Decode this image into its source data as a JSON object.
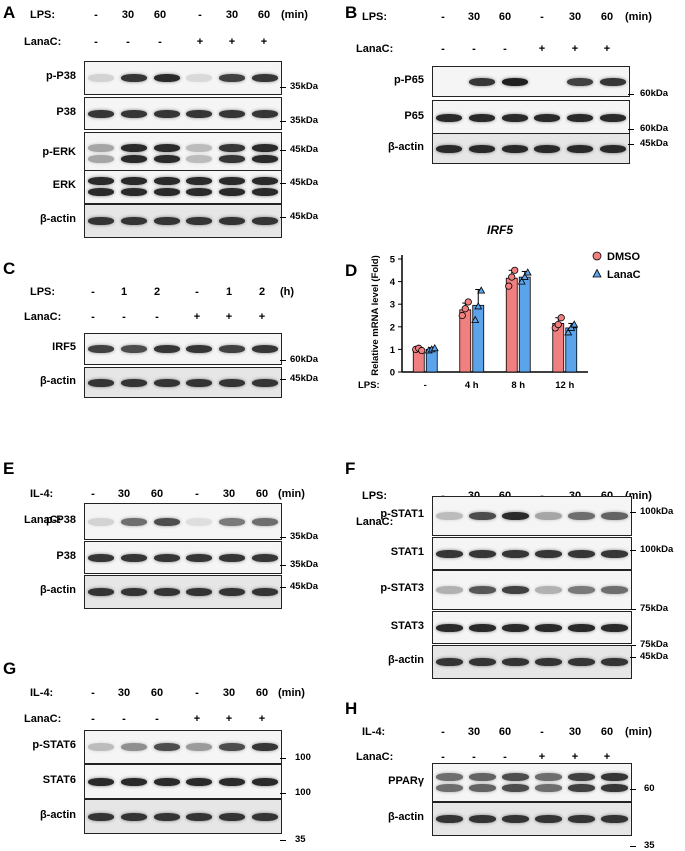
{
  "panels": {
    "A": {
      "letter": "A",
      "treat": "LPS:",
      "treat_vals": [
        "-",
        "30",
        "60",
        "-",
        "30",
        "60"
      ],
      "unit": "(min)",
      "inh": "LanaC:",
      "inh_vals": [
        "-",
        "-",
        "-",
        "+",
        "+",
        "+"
      ],
      "rows": [
        "p-P38",
        "P38",
        "p-ERK",
        "ERK",
        "β-actin"
      ],
      "markers": [
        "35kDa",
        "35kDa",
        "45kDa",
        "45kDa",
        "45kDa"
      ]
    },
    "B": {
      "letter": "B",
      "treat": "LPS:",
      "treat_vals": [
        "-",
        "30",
        "60",
        "-",
        "30",
        "60"
      ],
      "unit": "(min)",
      "inh": "LanaC:",
      "inh_vals": [
        "-",
        "-",
        "-",
        "+",
        "+",
        "+"
      ],
      "rows": [
        "p-P65",
        "P65",
        "β-actin"
      ],
      "markers": [
        "60kDa",
        "60kDa",
        "45kDa"
      ]
    },
    "C": {
      "letter": "C",
      "treat": "LPS:",
      "treat_vals": [
        "-",
        "1",
        "2",
        "-",
        "1",
        "2"
      ],
      "unit": "(h)",
      "inh": "LanaC:",
      "inh_vals": [
        "-",
        "-",
        "-",
        "+",
        "+",
        "+"
      ],
      "rows": [
        "IRF5",
        "β-actin"
      ],
      "markers": [
        "60kDa",
        "45kDa"
      ]
    },
    "E": {
      "letter": "E",
      "treat": "IL-4:",
      "treat_vals": [
        "-",
        "30",
        "60",
        "-",
        "30",
        "60"
      ],
      "unit": "(min)",
      "inh": "LanaC:",
      "inh_vals": [
        "-",
        "-",
        "-",
        "+",
        "+",
        "+"
      ],
      "rows": [
        "p-P38",
        "P38",
        "β-actin"
      ],
      "markers": [
        "35kDa",
        "35kDa",
        "45kDa"
      ]
    },
    "F": {
      "letter": "F",
      "treat": "LPS:",
      "treat_vals": [
        "-",
        "30",
        "60",
        "-",
        "30",
        "60"
      ],
      "unit": "(min)",
      "inh": "LanaC:",
      "inh_vals": [
        "-",
        "-",
        "-",
        "+",
        "+",
        "+"
      ],
      "rows": [
        "p-STAT1",
        "STAT1",
        "p-STAT3",
        "STAT3",
        "β-actin"
      ],
      "markers": [
        "100kDa",
        "100kDa",
        "75kDa",
        "75kDa",
        "45kDa"
      ]
    },
    "G": {
      "letter": "G",
      "treat": "IL-4:",
      "treat_vals": [
        "-",
        "30",
        "60",
        "-",
        "30",
        "60"
      ],
      "unit": "(min)",
      "inh": "LanaC:",
      "inh_vals": [
        "-",
        "-",
        "-",
        "+",
        "+",
        "+"
      ],
      "rows": [
        "p-STAT6",
        "STAT6",
        "β-actin"
      ],
      "markers": [
        "100",
        "100",
        "35"
      ]
    },
    "H": {
      "letter": "H",
      "treat": "IL-4:",
      "treat_vals": [
        "-",
        "30",
        "60",
        "-",
        "30",
        "60"
      ],
      "unit": "(min)",
      "inh": "LanaC:",
      "inh_vals": [
        "-",
        "-",
        "-",
        "+",
        "+",
        "+"
      ],
      "rows": [
        "PPARγ",
        "β-actin"
      ],
      "markers": [
        "60",
        "35"
      ]
    }
  },
  "band_levels": {
    "A": [
      [
        0.15,
        0.85,
        0.9,
        0.12,
        0.8,
        0.85
      ],
      [
        0.85,
        0.85,
        0.85,
        0.85,
        0.85,
        0.85
      ],
      [
        0.35,
        0.9,
        0.9,
        0.25,
        0.85,
        0.9
      ],
      [
        0.9,
        0.9,
        0.9,
        0.9,
        0.9,
        0.9
      ],
      [
        0.85,
        0.85,
        0.85,
        0.85,
        0.85,
        0.85
      ]
    ],
    "B": [
      [
        0.0,
        0.85,
        0.95,
        0.0,
        0.8,
        0.85
      ],
      [
        0.9,
        0.9,
        0.9,
        0.9,
        0.9,
        0.9
      ],
      [
        0.9,
        0.9,
        0.9,
        0.9,
        0.9,
        0.9
      ]
    ],
    "C": [
      [
        0.8,
        0.75,
        0.85,
        0.85,
        0.8,
        0.85
      ],
      [
        0.85,
        0.85,
        0.85,
        0.85,
        0.85,
        0.85
      ]
    ],
    "E": [
      [
        0.15,
        0.6,
        0.75,
        0.1,
        0.55,
        0.6
      ],
      [
        0.85,
        0.85,
        0.85,
        0.85,
        0.85,
        0.85
      ],
      [
        0.85,
        0.85,
        0.85,
        0.85,
        0.85,
        0.85
      ]
    ],
    "F": [
      [
        0.25,
        0.75,
        0.9,
        0.35,
        0.6,
        0.65
      ],
      [
        0.85,
        0.85,
        0.85,
        0.85,
        0.85,
        0.85
      ],
      [
        0.3,
        0.7,
        0.8,
        0.3,
        0.55,
        0.6
      ],
      [
        0.9,
        0.9,
        0.9,
        0.9,
        0.9,
        0.9
      ],
      [
        0.85,
        0.85,
        0.85,
        0.85,
        0.85,
        0.85
      ]
    ],
    "G": [
      [
        0.25,
        0.45,
        0.75,
        0.4,
        0.75,
        0.85
      ],
      [
        0.9,
        0.9,
        0.9,
        0.9,
        0.9,
        0.9
      ],
      [
        0.85,
        0.85,
        0.85,
        0.85,
        0.85,
        0.85
      ]
    ],
    "H": [
      [
        0.6,
        0.65,
        0.75,
        0.6,
        0.8,
        0.85
      ],
      [
        0.85,
        0.85,
        0.85,
        0.85,
        0.85,
        0.85
      ]
    ]
  },
  "chart_data": {
    "type": "bar",
    "letter": "D",
    "title": "IRF5",
    "ylabel": "Relative mRNA level (Fold)",
    "xlabel": "LPS:",
    "categories": [
      "-",
      "4 h",
      "8 h",
      "12 h"
    ],
    "ylim": [
      0,
      5
    ],
    "yticks": [
      0,
      1,
      2,
      3,
      4,
      5
    ],
    "legend_position": "top-right",
    "series": [
      {
        "name": "DMSO",
        "color": "#f08080",
        "values": [
          1.0,
          2.75,
          4.15,
          2.15
        ],
        "errors": [
          0.05,
          0.3,
          0.35,
          0.25
        ],
        "points": [
          [
            1.0,
            1.05,
            0.95
          ],
          [
            2.5,
            2.8,
            3.1
          ],
          [
            3.8,
            4.2,
            4.5
          ],
          [
            1.95,
            2.1,
            2.4
          ]
        ]
      },
      {
        "name": "LanaC",
        "color": "#5ba3ea",
        "values": [
          1.0,
          2.95,
          4.2,
          1.95
        ],
        "errors": [
          0.08,
          0.7,
          0.25,
          0.2
        ],
        "points": [
          [
            0.95,
            1.0,
            1.05
          ],
          [
            2.3,
            2.9,
            3.6
          ],
          [
            4.0,
            4.2,
            4.4
          ],
          [
            1.75,
            1.95,
            2.1
          ]
        ]
      }
    ]
  }
}
